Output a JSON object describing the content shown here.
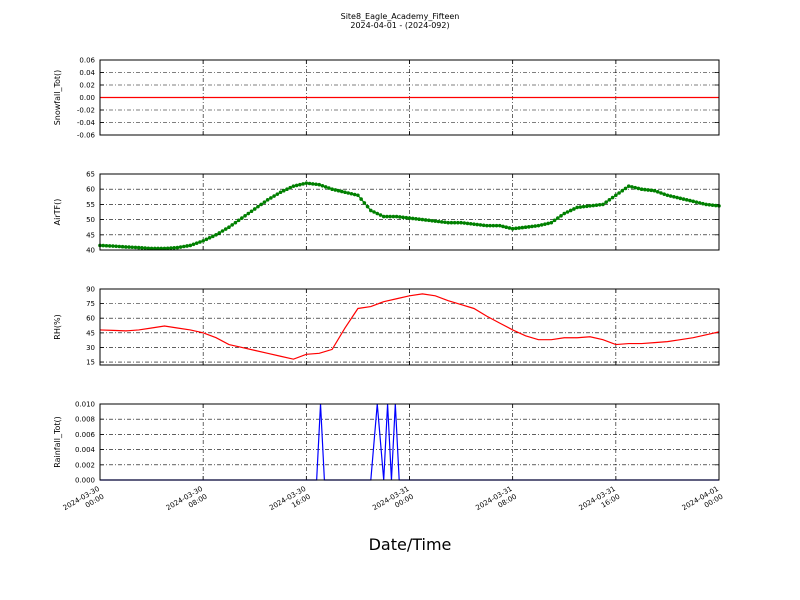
{
  "chart_data": {
    "type": "line",
    "title": "Site8_Eagle_Academy_Fifteen",
    "subtitle": "2024-04-01 - (2024-092)",
    "xlabel": "Date/Time",
    "x_ticks": [
      {
        "line1": "2024-03-30",
        "line2": "00:00"
      },
      {
        "line1": "2024-03-30",
        "line2": "08:00"
      },
      {
        "line1": "2024-03-30",
        "line2": "16:00"
      },
      {
        "line1": "2024-03-31",
        "line2": "00:00"
      },
      {
        "line1": "2024-03-31",
        "line2": "08:00"
      },
      {
        "line1": "2024-03-31",
        "line2": "16:00"
      },
      {
        "line1": "2024-04-01",
        "line2": "00:00"
      }
    ],
    "xlim": [
      "2024-03-30 00:00",
      "2024-04-01 00:00"
    ],
    "grid": true,
    "panels": [
      {
        "ylabel": "Snowfall_Tot()",
        "ylim": [
          -0.06,
          0.06
        ],
        "yticks": [
          "-0.06",
          "-0.04",
          "-0.02",
          "0.00",
          "0.02",
          "0.04",
          "0.06"
        ],
        "color": "#ff0000",
        "marker": false,
        "x_hours": [
          0,
          48
        ],
        "values": [
          0,
          0
        ]
      },
      {
        "ylabel": "AirTF()",
        "ylim": [
          40,
          65
        ],
        "yticks": [
          "40",
          "45",
          "50",
          "55",
          "60",
          "65"
        ],
        "color": "#008000",
        "marker": true,
        "x_hours": [
          0,
          1,
          2,
          3,
          4,
          5,
          6,
          7,
          8,
          9,
          10,
          11,
          12,
          13,
          14,
          15,
          16,
          17,
          18,
          19,
          20,
          21,
          22,
          23,
          24,
          25,
          26,
          27,
          28,
          29,
          30,
          31,
          32,
          33,
          34,
          35,
          36,
          37,
          38,
          39,
          40,
          41,
          42,
          43,
          44,
          45,
          46,
          47,
          48
        ],
        "values": [
          41.5,
          41.3,
          41,
          40.8,
          40.5,
          40.5,
          40.8,
          41.5,
          43,
          45,
          47.5,
          50.5,
          53.5,
          56.5,
          59,
          61,
          62,
          61.5,
          60,
          59,
          58,
          53,
          51,
          51,
          50.5,
          50,
          49.5,
          49,
          49,
          48.5,
          48,
          48,
          47,
          47.5,
          48,
          49,
          52,
          54,
          54.5,
          55,
          58,
          61,
          60,
          59.5,
          58,
          57,
          56,
          55,
          54.5
        ]
      },
      {
        "ylabel": "RH(%)",
        "ylim": [
          12,
          90
        ],
        "yticks": [
          "15",
          "30",
          "45",
          "60",
          "75",
          "90"
        ],
        "color": "#ff0000",
        "marker": false,
        "x_hours": [
          0,
          1,
          2,
          3,
          4,
          5,
          6,
          7,
          8,
          9,
          10,
          11,
          12,
          13,
          14,
          15,
          16,
          17,
          18,
          19,
          20,
          21,
          22,
          23,
          24,
          25,
          26,
          27,
          28,
          29,
          30,
          31,
          32,
          33,
          34,
          35,
          36,
          37,
          38,
          39,
          40,
          41,
          42,
          43,
          44,
          45,
          46,
          47,
          48
        ],
        "values": [
          48,
          47.5,
          47,
          48,
          50,
          52,
          50,
          48,
          45,
          40,
          33,
          30,
          27,
          24,
          21,
          18,
          23,
          24,
          28,
          50,
          70,
          72,
          77,
          80,
          83,
          85,
          83,
          78,
          74,
          70,
          62,
          55,
          48,
          42,
          38,
          38,
          40,
          40,
          41,
          38,
          33,
          34,
          34,
          35,
          36,
          38,
          40,
          43,
          46
        ]
      },
      {
        "ylabel": "Rainfall_Tot()",
        "ylim": [
          0,
          0.01
        ],
        "yticks": [
          "0.000",
          "0.002",
          "0.004",
          "0.006",
          "0.008",
          "0.010"
        ],
        "color": "#0000ff",
        "marker": false,
        "x_hours": [
          0,
          16.8,
          17.1,
          17.4,
          21.0,
          21.5,
          22.0,
          22.3,
          22.6,
          22.9,
          23.2,
          48
        ],
        "values": [
          0,
          0,
          0.01,
          0,
          0,
          0.01,
          0,
          0.01,
          0,
          0.01,
          0,
          0
        ]
      }
    ]
  }
}
